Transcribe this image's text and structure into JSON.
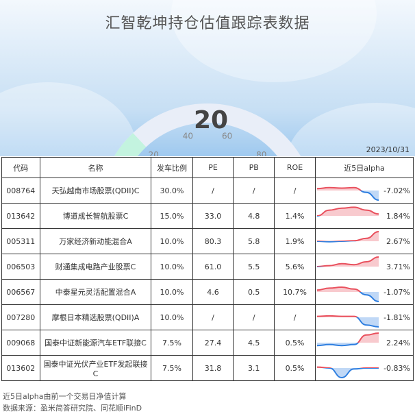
{
  "title": "汇智乾坤持仓估值跟踪表数据",
  "gauge": {
    "value": 20,
    "min": 0,
    "max": 100,
    "ticks": [
      "0",
      "20",
      "40",
      "60",
      "80",
      "100"
    ],
    "fill_color": "#bff3dc",
    "track_color": "#e9eef8"
  },
  "date": "2023/10/31",
  "table": {
    "headers": [
      "代码",
      "名称",
      "发车比例",
      "PE",
      "PB",
      "ROE",
      "近5日alpha"
    ],
    "rows": [
      {
        "code": "008764",
        "name": "天弘越南市场股票(QDII)C",
        "ratio": "30.0%",
        "pe": "/",
        "pb": "/",
        "roe": "/",
        "alpha": "-7.02%",
        "trend": [
          0.2,
          0.3,
          0.25,
          0.3,
          -0.2,
          -1.0
        ]
      },
      {
        "code": "013642",
        "name": "博道成长智航股票C",
        "ratio": "15.0%",
        "pe": "33.0",
        "pb": "4.8",
        "roe": "1.4%",
        "alpha": "1.84%",
        "trend": [
          0.0,
          0.6,
          0.8,
          0.9,
          0.6,
          0.2
        ]
      },
      {
        "code": "005311",
        "name": "万家经济新动能混合A",
        "ratio": "10.0%",
        "pe": "80.3",
        "pb": "5.8",
        "roe": "1.9%",
        "alpha": "2.67%",
        "trend": [
          0.0,
          -0.05,
          0.0,
          0.05,
          0.3,
          1.0
        ]
      },
      {
        "code": "006503",
        "name": "财通集成电路产业股票C",
        "ratio": "10.0%",
        "pe": "61.0",
        "pb": "5.5",
        "roe": "5.6%",
        "alpha": "3.71%",
        "trend": [
          0.0,
          0.1,
          0.3,
          0.2,
          0.5,
          1.0
        ]
      },
      {
        "code": "006567",
        "name": "中泰星元灵活配置混合A",
        "ratio": "10.0%",
        "pe": "4.6",
        "pb": "0.5",
        "roe": "10.7%",
        "alpha": "-1.07%",
        "trend": [
          0.2,
          0.4,
          0.5,
          0.3,
          -0.3,
          -1.0
        ]
      },
      {
        "code": "007280",
        "name": "摩根日本精选股票(QDII)A",
        "ratio": "10.0%",
        "pe": "/",
        "pb": "/",
        "roe": "/",
        "alpha": "-1.81%",
        "trend": [
          0.1,
          0.15,
          0.1,
          0.1,
          -0.8,
          -1.0
        ]
      },
      {
        "code": "009068",
        "name": "国泰中证新能源汽车ETF联接C",
        "ratio": "7.5%",
        "pe": "27.4",
        "pb": "4.5",
        "roe": "0.5%",
        "alpha": "2.24%",
        "trend": [
          -0.3,
          -0.2,
          -0.3,
          -0.2,
          0.8,
          1.0
        ]
      },
      {
        "code": "013602",
        "name": "国泰中证光伏产业ETF发起联接C",
        "ratio": "7.5%",
        "pe": "31.8",
        "pb": "3.1",
        "roe": "0.5%",
        "alpha": "-0.83%",
        "trend": [
          0.1,
          0.0,
          -1.0,
          -0.1,
          0.0,
          0.0
        ]
      }
    ]
  },
  "colors": {
    "positive": "#e9505d",
    "negative": "#2f7fe0"
  },
  "notes": [
    "近5日alpha由前一个交易日净值计算",
    "数据来源：盈米简答研究院、同花顺iFinD"
  ]
}
